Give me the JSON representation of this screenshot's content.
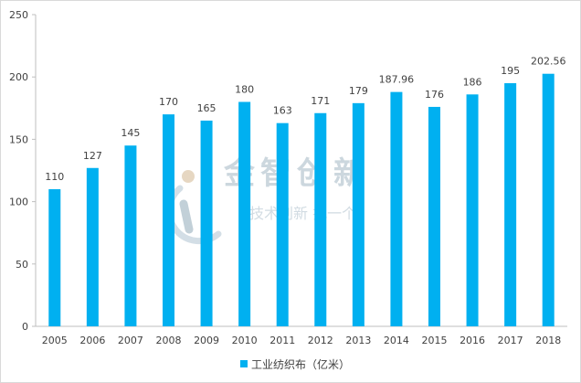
{
  "chart_data": {
    "type": "bar",
    "title": "",
    "xlabel": "",
    "ylabel": "",
    "categories": [
      "2005",
      "2006",
      "2007",
      "2008",
      "2009",
      "2010",
      "2011",
      "2012",
      "2013",
      "2014",
      "2015",
      "2016",
      "2017",
      "2018"
    ],
    "series": [
      {
        "name": "工业纺织布（亿米）",
        "values": [
          110,
          127,
          145,
          170,
          165,
          180,
          163,
          171,
          179,
          187.96,
          176,
          186,
          195,
          202.56
        ],
        "color": "#00b0f0"
      }
    ],
    "data_labels": [
      "110",
      "127",
      "145",
      "170",
      "165",
      "180",
      "163",
      "171",
      "179",
      "187.96",
      "176",
      "186",
      "195",
      "202.56"
    ],
    "ylim": [
      0,
      250
    ],
    "yticks": [
      0,
      50,
      100,
      150,
      200,
      250
    ],
    "grid": false,
    "legend_position": "bottom"
  },
  "watermark": {
    "main": "金智创新",
    "sub": "技术创新 找一个"
  },
  "colors": {
    "axis": "#bfbfbf",
    "text": "#404040",
    "watermark": "#8fa8b8"
  }
}
